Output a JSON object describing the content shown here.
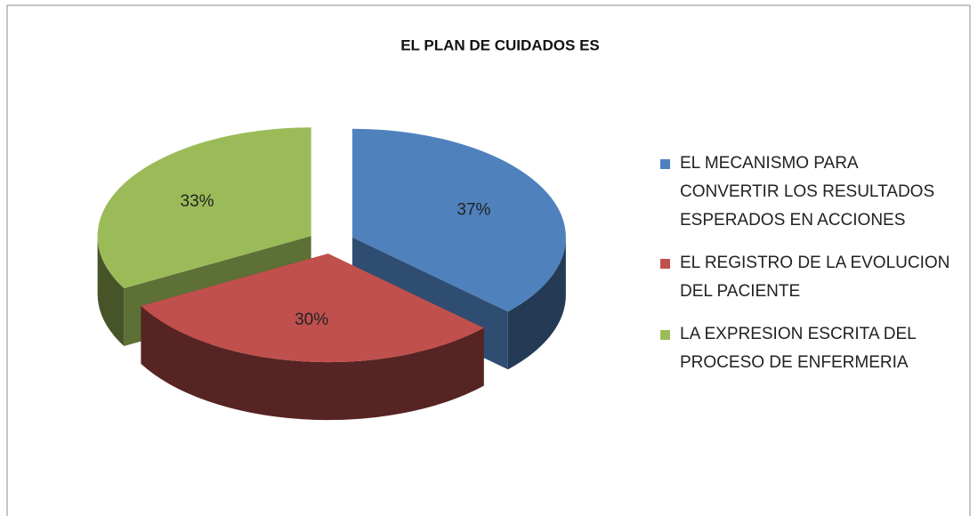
{
  "chart_data": {
    "type": "pie3d",
    "title": "EL PLAN DE CUIDADOS ES",
    "categories": [
      "EL MECANISMO PARA CONVERTIR LOS RESULTADOS ESPERADOS EN ACCIONES",
      "EL REGISTRO DE LA EVOLUCION DEL PACIENTE",
      "LA EXPRESION ESCRITA DEL PROCESO DE ENFERMERIA"
    ],
    "values": [
      37,
      30,
      33
    ],
    "value_labels": [
      "37%",
      "30%",
      "33%"
    ],
    "colors": [
      "#4f81bd",
      "#c0504d",
      "#9bbb59"
    ],
    "legend": "right"
  }
}
